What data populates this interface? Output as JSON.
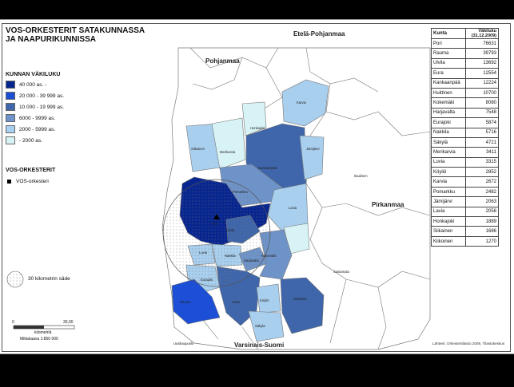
{
  "title": [
    "VOS-ORKESTERIT SATAKUNNASSA",
    "JA NAAPURIKUNNISSA"
  ],
  "legend": {
    "title": "KUNNAN VÄKILUKU",
    "classes": [
      {
        "label": "40 000 as. -",
        "color": "#08268f"
      },
      {
        "label": "20 000 - 39 999 as.",
        "color": "#1c4fd6"
      },
      {
        "label": "10 000 - 19 999 as.",
        "color": "#3f66aa"
      },
      {
        "label": "6000 - 9999 as.",
        "color": "#6e93c8"
      },
      {
        "label": "2000 - 5999 as.",
        "color": "#a9cfee"
      },
      {
        "label": "- 2000 as.",
        "color": "#d8f3f5"
      }
    ]
  },
  "vos": {
    "title": "VOS-ORKESTERIT",
    "label": "VOS-orkesteri"
  },
  "circle_label": "30 kilometrin säde",
  "scale": {
    "zero": "0",
    "max": "30,00",
    "unit": "kilometriä",
    "ratio": "Mittakaava 1:850 000"
  },
  "regions": [
    "Etelä-Pohjanmaa",
    "Pohjanmaa",
    "Pirkanmaa",
    "Varsinais-Suomi"
  ],
  "municipality_labels": [
    "Pori",
    "Pomarkku",
    "Ulvila",
    "Nakkila",
    "Harjavalta",
    "Luvia",
    "Eurajoki",
    "Kokemäki",
    "Eura",
    "Köyliö",
    "Säkylä",
    "Huittinen",
    "Rauma",
    "Lavia",
    "Kankaanpää",
    "Jämijärvi",
    "Karvia",
    "Honkajoki",
    "Siikainen",
    "Merikarvia",
    "Ikaalinen",
    "Sastamala",
    "Uusikaupunki"
  ],
  "table": {
    "headers": [
      "Kunta",
      "Väkiluku (31.12.2009)"
    ],
    "rows": [
      [
        "Pori",
        "76631"
      ],
      [
        "Rauma",
        "39793"
      ],
      [
        "Ulvila",
        "13692"
      ],
      [
        "Eura",
        "12554"
      ],
      [
        "Kankaanpää",
        "12224"
      ],
      [
        "Huittinen",
        "10700"
      ],
      [
        "Kokemäki",
        "8080"
      ],
      [
        "Harjavalta",
        "7548"
      ],
      [
        "Eurajoki",
        "5874"
      ],
      [
        "Nakkila",
        "5716"
      ],
      [
        "Säkylä",
        "4721"
      ],
      [
        "Merikarvia",
        "3411"
      ],
      [
        "Luvia",
        "3315"
      ],
      [
        "Köyliö",
        "2852"
      ],
      [
        "Karvia",
        "2672"
      ],
      [
        "Pomarkku",
        "2482"
      ],
      [
        "Jämijärvi",
        "2063"
      ],
      [
        "Lavia",
        "2058"
      ],
      [
        "Honkajoki",
        "1889"
      ],
      [
        "Siikainen",
        "1686"
      ],
      [
        "Kiikoinen",
        "1270"
      ]
    ]
  },
  "source": "Lähteet: Orkesteritilasto 2009, Tilastokeskus"
}
